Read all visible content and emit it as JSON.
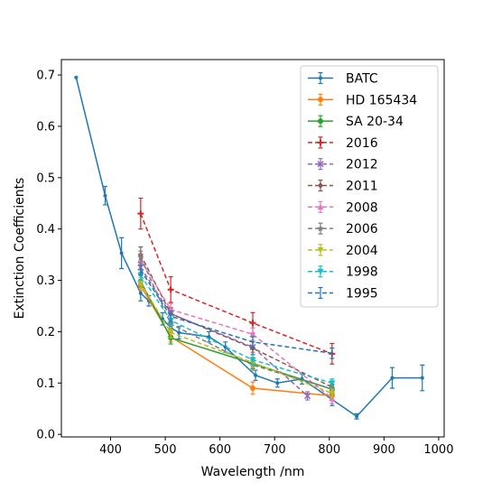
{
  "chart_data": {
    "type": "line",
    "title": "",
    "xlabel": "Wavelength /nm",
    "ylabel": "Extinction Coefficients",
    "xlim": [
      310,
      1010
    ],
    "ylim": [
      -0.005,
      0.73
    ],
    "xticks": [
      400,
      500,
      600,
      700,
      800,
      900,
      1000
    ],
    "yticks": [
      0.0,
      0.1,
      0.2,
      0.3,
      0.4,
      0.5,
      0.6,
      0.7
    ],
    "grid": false,
    "legend_position": "top-right",
    "series": [
      {
        "name": "BATC",
        "color": "#1f77b4",
        "dash": "solid",
        "marker": "dot",
        "x": [
          337,
          390,
          420,
          455,
          470,
          495,
          510,
          525,
          580,
          610,
          665,
          705,
          750,
          805,
          850,
          915,
          970
        ],
        "y": [
          0.695,
          0.465,
          0.353,
          0.275,
          0.26,
          0.225,
          0.208,
          0.198,
          0.19,
          0.17,
          0.115,
          0.1,
          0.108,
          0.068,
          0.035,
          0.11,
          0.11
        ],
        "err": [
          0.0,
          0.018,
          0.03,
          0.015,
          0.01,
          0.012,
          0.01,
          0.012,
          0.01,
          0.01,
          0.01,
          0.008,
          0.01,
          0.012,
          0.005,
          0.02,
          0.025
        ]
      },
      {
        "name": "HD 165434",
        "color": "#ff7f0e",
        "dash": "solid",
        "marker": "circle",
        "x": [
          455,
          510,
          660,
          805
        ],
        "y": [
          0.29,
          0.19,
          0.09,
          0.075
        ],
        "err": [
          0.01,
          0.01,
          0.012,
          0.008
        ]
      },
      {
        "name": "SA 20-34",
        "color": "#2ca02c",
        "dash": "solid",
        "marker": "circle",
        "x": [
          455,
          510,
          660,
          805
        ],
        "y": [
          0.298,
          0.188,
          0.138,
          0.088
        ],
        "err": [
          0.012,
          0.012,
          0.01,
          0.01
        ]
      },
      {
        "name": "2016",
        "color": "#d62728",
        "dash": "dashed",
        "marker": "plus",
        "x": [
          455,
          510,
          660,
          805
        ],
        "y": [
          0.43,
          0.282,
          0.217,
          0.157
        ],
        "err": [
          0.03,
          0.025,
          0.02,
          0.02
        ]
      },
      {
        "name": "2012",
        "color": "#9467bd",
        "dash": "dashed",
        "marker": "x",
        "x": [
          455,
          510,
          660,
          760
        ],
        "y": [
          0.325,
          0.235,
          0.17,
          0.075
        ],
        "err": [
          0.01,
          0.01,
          0.01,
          0.008
        ]
      },
      {
        "name": "2011",
        "color": "#8c564b",
        "dash": "dashed",
        "marker": "diamond",
        "x": [
          455,
          510,
          660,
          805
        ],
        "y": [
          0.35,
          0.235,
          0.168,
          0.092
        ],
        "err": [
          0.015,
          0.012,
          0.012,
          0.01
        ]
      },
      {
        "name": "2008",
        "color": "#e377c2",
        "dash": "dashed",
        "marker": "triangle-up",
        "x": [
          455,
          510,
          660,
          805
        ],
        "y": [
          0.34,
          0.243,
          0.195,
          0.07
        ],
        "err": [
          0.012,
          0.012,
          0.012,
          0.01
        ]
      },
      {
        "name": "2006",
        "color": "#7f7f7f",
        "dash": "dashed",
        "marker": "star",
        "x": [
          455,
          510,
          660,
          805
        ],
        "y": [
          0.345,
          0.215,
          0.135,
          0.088
        ],
        "err": [
          0.012,
          0.01,
          0.01,
          0.008
        ]
      },
      {
        "name": "2004",
        "color": "#bcbd22",
        "dash": "dashed",
        "marker": "triangle-down",
        "x": [
          455,
          510,
          660,
          805
        ],
        "y": [
          0.295,
          0.198,
          0.14,
          0.08
        ],
        "err": [
          0.01,
          0.01,
          0.01,
          0.008
        ]
      },
      {
        "name": "1998",
        "color": "#17becf",
        "dash": "dashed",
        "marker": "triangle-down",
        "x": [
          455,
          510,
          660,
          805
        ],
        "y": [
          0.31,
          0.222,
          0.145,
          0.1
        ],
        "err": [
          0.01,
          0.01,
          0.01,
          0.008
        ]
      },
      {
        "name": "1995",
        "color": "#1f77b4",
        "dash": "dashed",
        "marker": "none",
        "x": [
          455,
          510,
          660,
          805
        ],
        "y": [
          0.32,
          0.23,
          0.18,
          0.158
        ],
        "err": [
          0.01,
          0.01,
          0.01,
          0.01
        ]
      }
    ]
  }
}
